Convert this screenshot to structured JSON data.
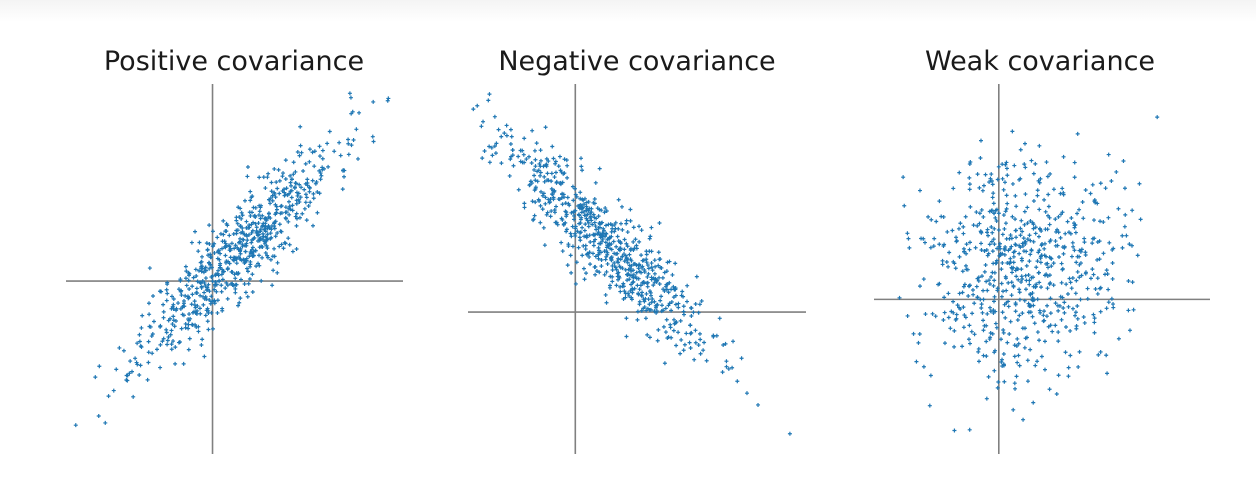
{
  "chart_data": [
    {
      "type": "scatter",
      "title": "Positive covariance",
      "marker_color": "#1f77b4",
      "axis_color": "#808080",
      "grid": false,
      "xlim": [
        -3.0,
        3.9
      ],
      "ylim": [
        -3.6,
        4.1
      ],
      "point_count": 700,
      "generator": {
        "seed": 11,
        "slope": 1.0,
        "noise": 0.5
      },
      "series": [
        {
          "sample_points": [
            {
              "x": -2.8,
              "y": -3.0
            },
            {
              "x": -2.4,
              "y": -2.0
            },
            {
              "x": -1.0,
              "y": -1.2
            },
            {
              "x": -0.2,
              "y": 0.0
            },
            {
              "x": 0.0,
              "y": 0.1
            },
            {
              "x": 0.8,
              "y": 1.0
            },
            {
              "x": 1.5,
              "y": 1.8
            },
            {
              "x": 2.2,
              "y": 2.6
            },
            {
              "x": 3.0,
              "y": 3.5
            },
            {
              "x": 3.6,
              "y": 3.8
            }
          ]
        }
      ]
    },
    {
      "type": "scatter",
      "title": "Negative covariance",
      "marker_color": "#1f77b4",
      "axis_color": "#808080",
      "grid": false,
      "xlim": [
        -2.0,
        4.3
      ],
      "ylim": [
        -2.8,
        4.5
      ],
      "point_count": 700,
      "generator": {
        "seed": 23,
        "slope": -1.0,
        "noise": 0.45
      },
      "series": [
        {
          "sample_points": [
            {
              "x": -1.6,
              "y": 4.3
            },
            {
              "x": -1.2,
              "y": 3.6
            },
            {
              "x": -0.5,
              "y": 2.6
            },
            {
              "x": 0.0,
              "y": 2.0
            },
            {
              "x": 0.5,
              "y": 1.5
            },
            {
              "x": 1.2,
              "y": 0.8
            },
            {
              "x": 1.8,
              "y": 0.2
            },
            {
              "x": 2.4,
              "y": -0.6
            },
            {
              "x": 3.2,
              "y": -1.6
            },
            {
              "x": 4.0,
              "y": -2.4
            }
          ]
        }
      ]
    },
    {
      "type": "scatter",
      "title": "Weak covariance",
      "marker_color": "#1f77b4",
      "axis_color": "#808080",
      "grid": false,
      "xlim": [
        -2.6,
        4.4
      ],
      "ylim": [
        -2.8,
        3.9
      ],
      "point_count": 700,
      "generator": {
        "seed": 37,
        "slope": 0.05,
        "noise": 1.0
      },
      "series": [
        {
          "sample_points": [
            {
              "x": -1.9,
              "y": -0.3
            },
            {
              "x": -1.2,
              "y": 1.5
            },
            {
              "x": -0.6,
              "y": -0.8
            },
            {
              "x": 0.0,
              "y": 2.4
            },
            {
              "x": 0.3,
              "y": -2.0
            },
            {
              "x": 0.9,
              "y": 1.0
            },
            {
              "x": 1.4,
              "y": -0.5
            },
            {
              "x": 2.0,
              "y": 1.8
            },
            {
              "x": 2.7,
              "y": -0.2
            },
            {
              "x": 3.3,
              "y": 3.3
            }
          ]
        }
      ]
    }
  ]
}
